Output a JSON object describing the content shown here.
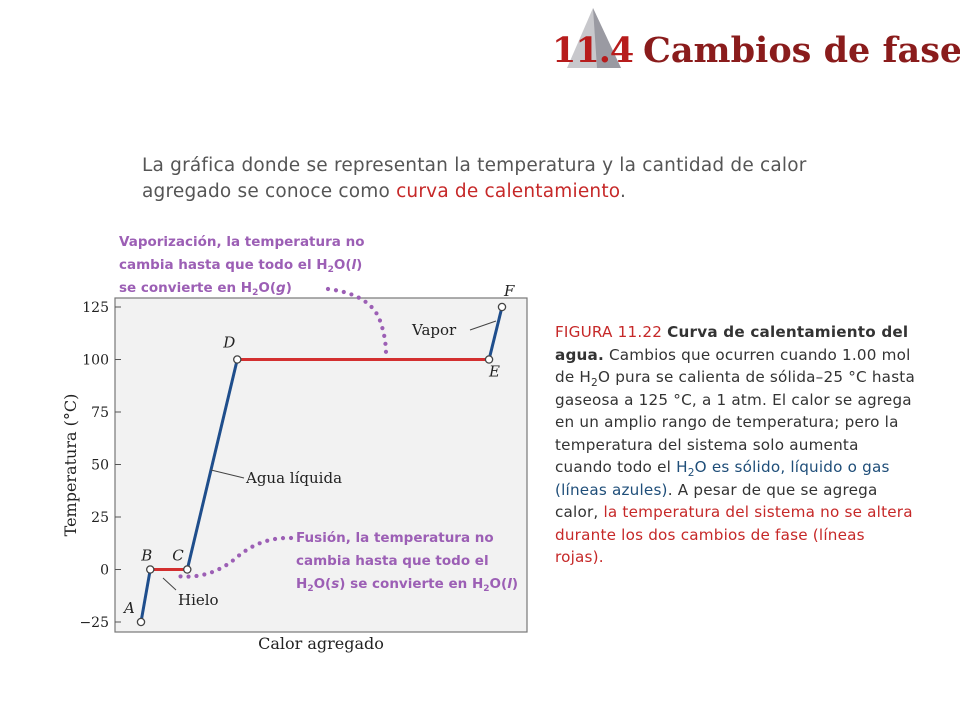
{
  "header": {
    "section_number": "11.4",
    "section_title": "Cambios de fase"
  },
  "intro": {
    "text_before": "La gráfica donde se representan la temperatura y la cantidad de calor agregado se conoce como ",
    "term": "curva de calentamiento",
    "text_after": "."
  },
  "caption": {
    "figure_label": "FIGURA 11.22",
    "title": "Curva de calentamiento del agua.",
    "body_1": "Cambios que ocurren cuando 1.00 mol de H",
    "body_2": "O pura se calienta de sólida–25 °C hasta gaseosa a 125 °C, a 1 atm. El calor se agrega en un amplio rango de temperatura; pero la temperatura del sistema solo aumenta cuando todo el ",
    "blue_1": "H",
    "blue_2": "O es sólido, líquido o gas (líneas azules)",
    "body_3": ". A pesar de que se agrega calor, ",
    "red_text": "la temperatura del sistema no se altera durante los dos cambios de fase (líneas rojas).",
    "sub_2": "2"
  },
  "chart_data": {
    "type": "line",
    "xlabel": "Calor agregado",
    "ylabel": "Temperatura (°C)",
    "ylim": [
      -25,
      125
    ],
    "yticks": [
      -25,
      0,
      25,
      50,
      75,
      100,
      125
    ],
    "x_note": "x values are relative heat added, in the same order as shown (no printed x scale)",
    "points": [
      {
        "label": "A",
        "x": 0,
        "y": -25
      },
      {
        "label": "B",
        "x": 2.5,
        "y": 0
      },
      {
        "label": "C",
        "x": 12.5,
        "y": 0
      },
      {
        "label": "D",
        "x": 26,
        "y": 100
      },
      {
        "label": "E",
        "x": 94,
        "y": 100
      },
      {
        "label": "F",
        "x": 97.5,
        "y": 125
      }
    ],
    "segments": [
      {
        "from": "A",
        "to": "B",
        "color": "#1f4e8c",
        "phase": "solid"
      },
      {
        "from": "B",
        "to": "C",
        "color": "#d32f2f",
        "phase": "change"
      },
      {
        "from": "C",
        "to": "D",
        "color": "#1f4e8c",
        "phase": "liquid"
      },
      {
        "from": "D",
        "to": "E",
        "color": "#d32f2f",
        "phase": "change"
      },
      {
        "from": "E",
        "to": "F",
        "color": "#1f4e8c",
        "phase": "gas"
      }
    ],
    "annotations": {
      "hielo": "Hielo",
      "agua": "Agua líquida",
      "vapor": "Vapor",
      "vaporizacion_line1": "Vaporización, la temperatura no",
      "vaporizacion_line2": "cambia hasta que todo el ",
      "vaporizacion_line2_formula": "H2O(l)",
      "vaporizacion_line3": "se convierte en ",
      "vaporizacion_line3_formula": "H2O(g)",
      "fusion_line1": "Fusión, la temperatura no",
      "fusion_line2": "cambia hasta que todo el",
      "fusion_line3_formula_a": "H2O(s)",
      "fusion_line3_mid": " se convierte en ",
      "fusion_line3_formula_b": "H2O(l)"
    },
    "colors": {
      "blue": "#1f4e8c",
      "red": "#d32f2f",
      "purple": "#9c5fb5",
      "plot_bg": "#f2f2f2"
    }
  }
}
